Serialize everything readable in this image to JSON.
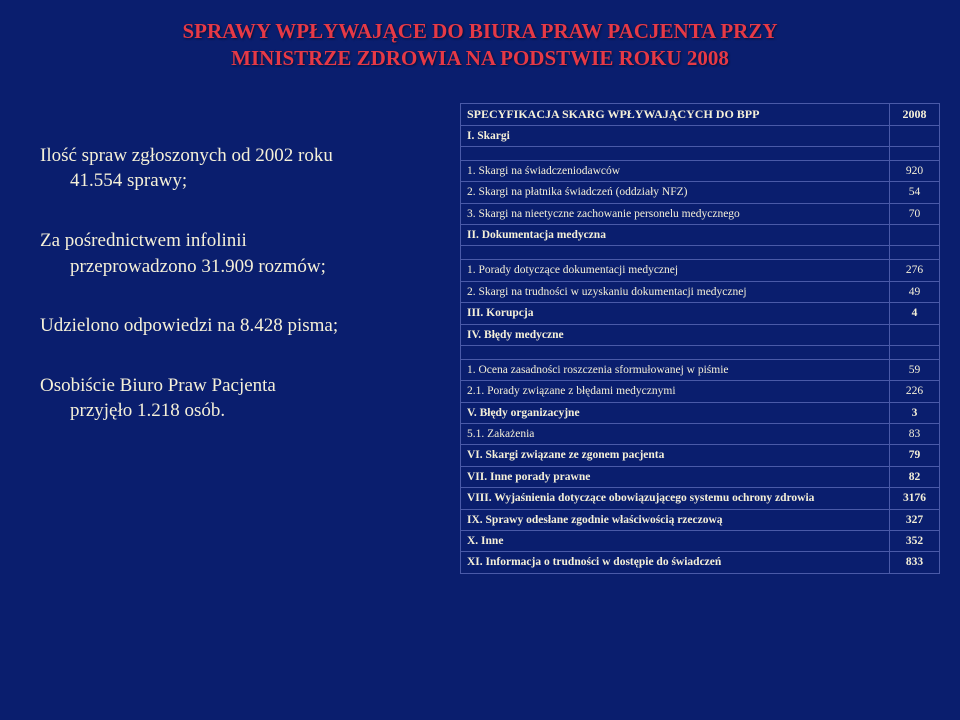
{
  "header": {
    "line1": "SPRAWY WPŁYWAJĄCE DO BIURA PRAW PACJENTA PRZY",
    "line2": "MINISTRZE ZDROWIA NA PODSTWIE ROKU 2008"
  },
  "left": {
    "item1a": "Ilość spraw zgłoszonych od 2002 roku",
    "item1b": "41.554 sprawy;",
    "item2a": "Za pośrednictwem infolinii",
    "item2b": "przeprowadzono 31.909 rozmów;",
    "item3": "Udzielono odpowiedzi na 8.428 pisma;",
    "item4a": "Osobiście Biuro Praw Pacjenta",
    "item4b": "przyjęło 1.218 osób."
  },
  "table": {
    "header_label": "SPECYFIKACJA SKARG WPŁYWAJĄCYCH DO BPP",
    "header_year": "2008",
    "rows": [
      {
        "label": "I. Skargi",
        "value": "",
        "bold": true
      },
      {
        "label": "1. Skargi na świadczeniodawców",
        "value": "920"
      },
      {
        "label": "2. Skargi na płatnika świadczeń (oddziały NFZ)",
        "value": "54"
      },
      {
        "label": "3. Skargi na nieetyczne zachowanie personelu medycznego",
        "value": "70"
      },
      {
        "label": "II. Dokumentacja medyczna",
        "value": "",
        "bold": true
      },
      {
        "label": "1. Porady dotyczące dokumentacji medycznej",
        "value": "276"
      },
      {
        "label": "2. Skargi na trudności w uzyskaniu dokumentacji medycznej",
        "value": "49"
      },
      {
        "label": "III. Korupcja",
        "value": "4",
        "bold": true
      },
      {
        "label": "IV. Błędy medyczne",
        "value": "",
        "bold": true
      },
      {
        "label": "1. Ocena zasadności roszczenia sformułowanej w piśmie",
        "value": "59"
      },
      {
        "label": "2.1. Porady związane z błędami medycznymi",
        "value": "226"
      },
      {
        "label": "V.  Błędy organizacyjne",
        "value": "3",
        "bold": true
      },
      {
        "label": "5.1. Zakażenia",
        "value": "83"
      },
      {
        "label": "VI.  Skargi związane ze zgonem pacjenta",
        "value": "79",
        "bold": true
      },
      {
        "label": "VII.  Inne porady prawne",
        "value": "82",
        "bold": true
      },
      {
        "label": "VIII. Wyjaśnienia dotyczące obowiązującego systemu ochrony zdrowia",
        "value": "3176",
        "bold": true
      },
      {
        "label": "IX. Sprawy odesłane zgodnie właściwością rzeczową",
        "value": "327",
        "bold": true
      },
      {
        "label": "X. Inne",
        "value": "352",
        "bold": true
      },
      {
        "label": "XI. Informacja o trudności w dostępie do świadczeń",
        "value": "833",
        "bold": true
      }
    ],
    "spacer_after": [
      0,
      4,
      8
    ]
  },
  "colors": {
    "background": "#0a1e6e",
    "header_text": "#e63946",
    "body_text": "#f5f0d8",
    "table_border": "#4a5aa8"
  }
}
